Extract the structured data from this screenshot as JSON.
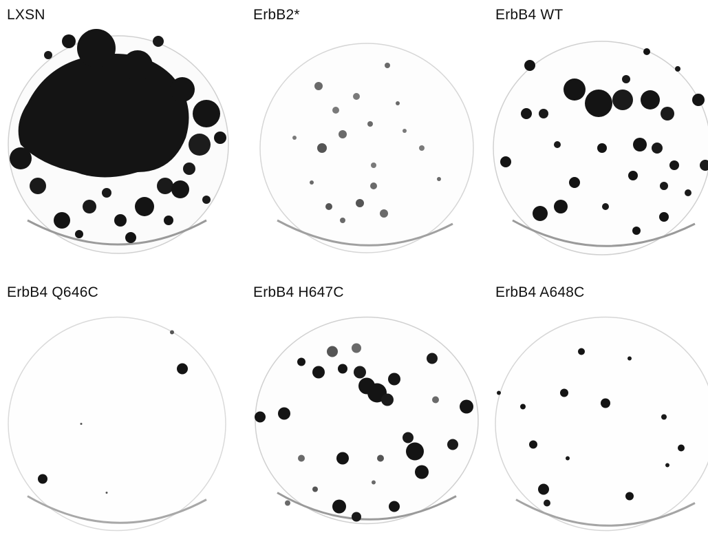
{
  "figure": {
    "panels": [
      {
        "label": "LXSN",
        "colony_density": "very high",
        "colony_tone": "dark"
      },
      {
        "label": "ErbB2*",
        "colony_density": "low",
        "colony_tone": "light-gray"
      },
      {
        "label": "ErbB4 WT",
        "colony_density": "high",
        "colony_tone": "dark"
      },
      {
        "label": "ErbB4 Q646C",
        "colony_density": "very low",
        "colony_tone": "dark"
      },
      {
        "label": "ErbB4 H647C",
        "colony_density": "high",
        "colony_tone": "dark"
      },
      {
        "label": "ErbB4 A648C",
        "colony_density": "low",
        "colony_tone": "dark"
      }
    ],
    "colors": {
      "background": "#ffffff",
      "label": "#111111",
      "colony_dark": "#141414",
      "colony_gray": "#6a6a6a",
      "plate_rim": "#bdbdbd"
    }
  }
}
